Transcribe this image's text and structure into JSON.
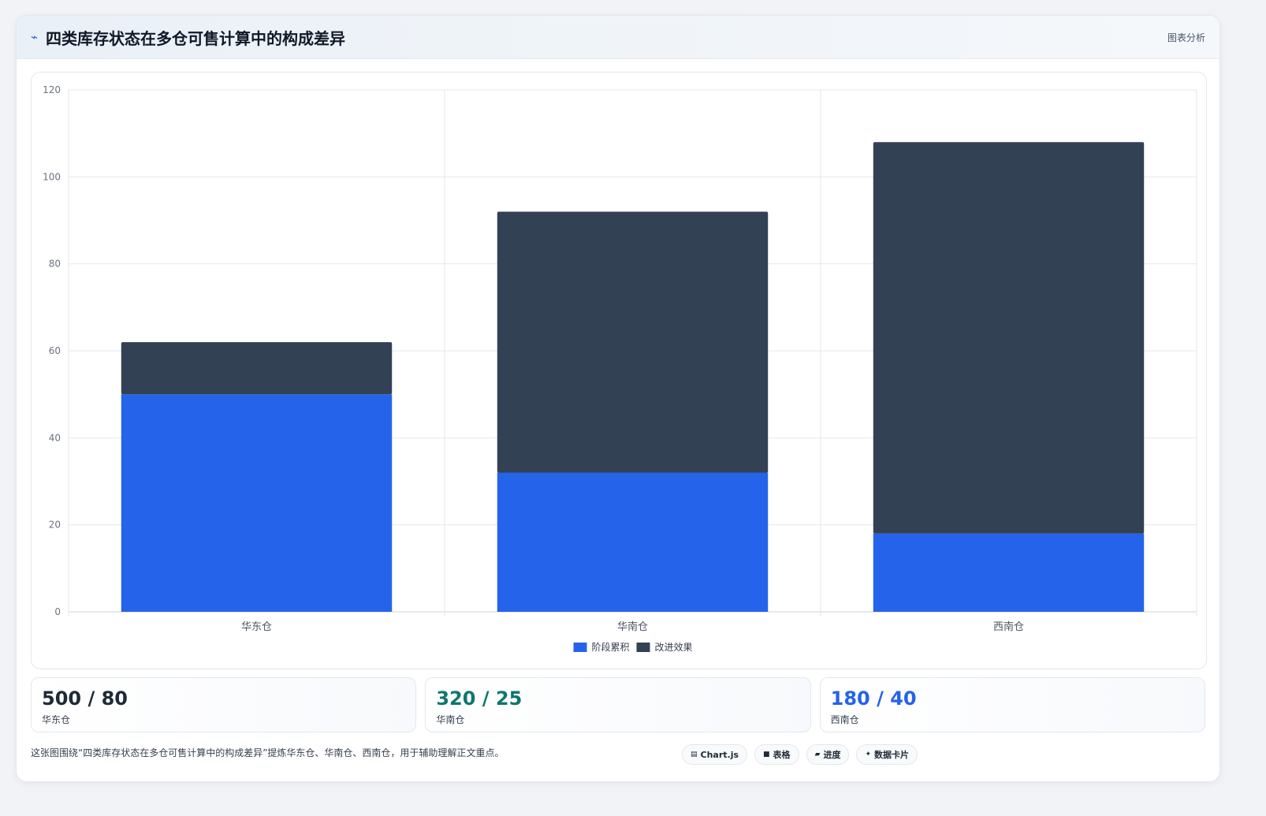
{
  "header": {
    "icon": "line-chart-icon",
    "title": "四类库存状态在多仓可售计算中的构成差异",
    "tag": "图表分析"
  },
  "chart_data": {
    "type": "bar",
    "stacked": true,
    "categories": [
      "华东仓",
      "华南仓",
      "西南仓"
    ],
    "series": [
      {
        "name": "阶段累积",
        "color": "#2563eb",
        "values": [
          50,
          32,
          18
        ]
      },
      {
        "name": "改进效果",
        "color": "#334155",
        "values": [
          12,
          60,
          90
        ]
      }
    ],
    "yticks": [
      "0",
      "20",
      "40",
      "60",
      "80",
      "100",
      "120"
    ],
    "ylim": [
      0,
      120
    ],
    "grid": true,
    "legend_position": "bottom"
  },
  "stats": [
    {
      "value": "500 / 80",
      "label": "华东仓",
      "color": "#1f2937"
    },
    {
      "value": "320 / 25",
      "label": "华南仓",
      "color": "#0f766e"
    },
    {
      "value": "180 / 40",
      "label": "西南仓",
      "color": "#2563eb"
    }
  ],
  "footer": {
    "note": "这张图围绕“四类库存状态在多仓可售计算中的构成差异”提炼华东仓、华南仓、西南仓，用于辅助理解正文重点。",
    "chips": [
      {
        "icon": "chart-icon",
        "glyph": "▤",
        "label": "Chart.js"
      },
      {
        "icon": "table-icon",
        "glyph": "■",
        "label": "表格"
      },
      {
        "icon": "progress-icon",
        "glyph": "▰",
        "label": "进度"
      },
      {
        "icon": "sparkle-icon",
        "glyph": "✦",
        "label": "数据卡片"
      }
    ]
  }
}
